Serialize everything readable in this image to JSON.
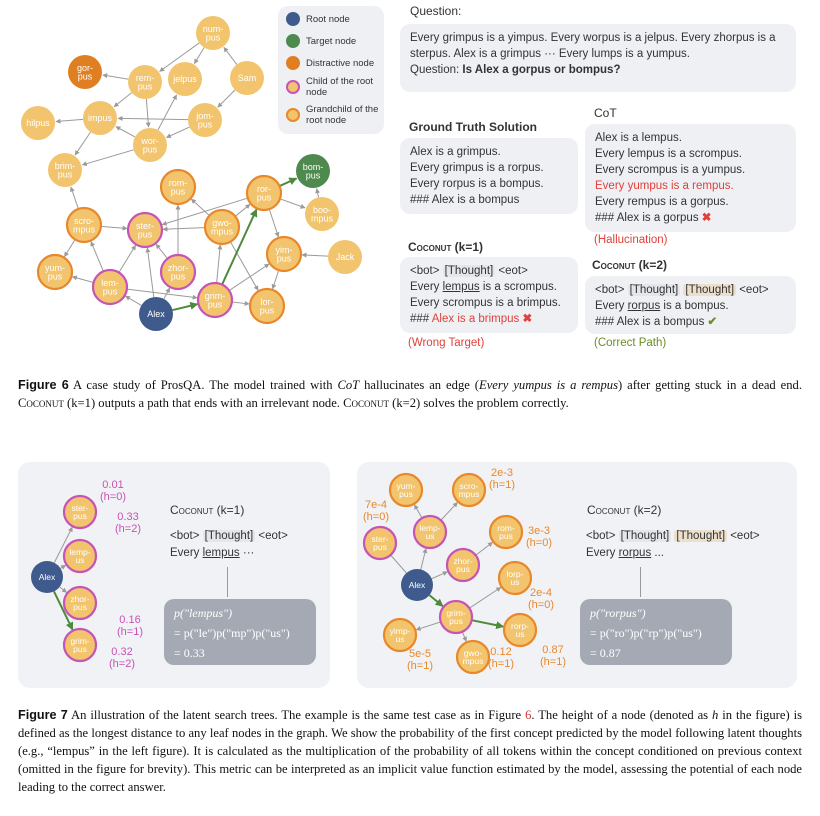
{
  "colors": {
    "fill": "#f2c46d",
    "orange": "#e8882a",
    "purple": "#c653b5",
    "root": "#3f5a8c",
    "target": "#4e8a4e",
    "distract": "#e07f22",
    "edge": "#9a9a9a",
    "green": "#4e8a3e"
  },
  "legend": [
    "Root node",
    "Target node",
    "Distractive node",
    "Child of the root node",
    "Grandchild of the root node"
  ],
  "fig6_graph": {
    "nodes": {
      "numpus": [
        "num-",
        "pus"
      ],
      "gorpus": [
        "gor-",
        "pus"
      ],
      "rempus": [
        "rem-",
        "pus"
      ],
      "jelpus": [
        "jelpus"
      ],
      "Sam": [
        "Sam"
      ],
      "hilpus": [
        "hilpus"
      ],
      "impus": [
        "impus"
      ],
      "jompus": [
        "jom-",
        "pus"
      ],
      "worpus": [
        "wor-",
        "pus"
      ],
      "brimpus": [
        "brim-",
        "pus"
      ],
      "rompus": [
        "rom-",
        "pus"
      ],
      "rorpus": [
        "ror-",
        "pus"
      ],
      "bompus": [
        "bom-",
        "pus"
      ],
      "boompus": [
        "boo-",
        "mpus"
      ],
      "scrompus": [
        "scro-",
        "mpus"
      ],
      "sterpus": [
        "ster-",
        "pus"
      ],
      "gwompus": [
        "gwo-",
        "mpus"
      ],
      "yimpus": [
        "yim-",
        "pus"
      ],
      "Jack": [
        "Jack"
      ],
      "yumpus": [
        "yum-",
        "pus"
      ],
      "lempus": [
        "lem-",
        "pus"
      ],
      "zhorpus": [
        "zhor-",
        "pus"
      ],
      "grimpus": [
        "grim-",
        "pus"
      ],
      "lorpus": [
        "lor-",
        "pus"
      ],
      "Alex": [
        "Alex"
      ]
    },
    "edges": [
      [
        "numpus",
        "rempus"
      ],
      [
        "numpus",
        "jelpus"
      ],
      [
        "Sam",
        "numpus"
      ],
      [
        "rempus",
        "gorpus"
      ],
      [
        "rempus",
        "impus"
      ],
      [
        "rempus",
        "worpus"
      ],
      [
        "jompus",
        "impus"
      ],
      [
        "Sam",
        "jompus"
      ],
      [
        "jompus",
        "worpus"
      ],
      [
        "worpus",
        "jelpus"
      ],
      [
        "worpus",
        "impus"
      ],
      [
        "impus",
        "hilpus"
      ],
      [
        "impus",
        "brimpus"
      ],
      [
        "worpus",
        "brimpus"
      ],
      [
        "scrompus",
        "brimpus"
      ],
      [
        "scrompus",
        "sterpus"
      ],
      [
        "scrompus",
        "yumpus"
      ],
      [
        "lempus",
        "scrompus"
      ],
      [
        "lempus",
        "sterpus"
      ],
      [
        "lempus",
        "yumpus"
      ],
      [
        "lempus",
        "grimpus"
      ],
      [
        "Alex",
        "lempus"
      ],
      [
        "Alex",
        "sterpus"
      ],
      [
        "Alex",
        "zhorpus"
      ],
      [
        "zhorpus",
        "sterpus"
      ],
      [
        "zhorpus",
        "rompus"
      ],
      [
        "gwompus",
        "sterpus"
      ],
      [
        "gwompus",
        "rompus"
      ],
      [
        "gwompus",
        "rorpus"
      ],
      [
        "rorpus",
        "sterpus"
      ],
      [
        "gwompus",
        "lorpus"
      ],
      [
        "grimpus",
        "gwompus"
      ],
      [
        "grimpus",
        "yimpus"
      ],
      [
        "grimpus",
        "lorpus"
      ],
      [
        "rorpus",
        "boompus"
      ],
      [
        "rorpus",
        "yimpus"
      ],
      [
        "boompus",
        "bompus"
      ],
      [
        "Jack",
        "yimpus"
      ],
      [
        "yimpus",
        "lorpus"
      ],
      [
        "Alex",
        "grimpus",
        "g"
      ],
      [
        "grimpus",
        "rorpus",
        "g"
      ],
      [
        "rorpus",
        "bompus",
        "g"
      ]
    ]
  },
  "question": {
    "label": "Question:",
    "text": "Every grimpus is a yimpus. Every worpus is a jelpus. Every zhorpus is a sterpus. Alex is a grimpus ··· Every lumps is a yumpus.",
    "q_prefix": "Question: ",
    "q": "Is Alex a gorpus or bompus?"
  },
  "ground_truth": {
    "label": "Ground Truth Solution",
    "lines": [
      "Alex is a grimpus.",
      "Every grimpus is a rorpus.",
      "Every rorpus is a bompus.",
      "### Alex is a bompus"
    ]
  },
  "cot": {
    "label": "CoT",
    "lines": [
      "Alex is a lempus.",
      "Every lempus is a scrompus.",
      "Every scrompus is a yumpus.",
      "Every yumpus is a rempus.",
      "Every rempus is a gorpus.",
      "### Alex is a gorpus"
    ],
    "note": "(Hallucination)"
  },
  "coconut1": {
    "name": "Coconut",
    "k": " (k=1)",
    "bot": "<bot>",
    "thought": "[Thought]",
    "eot": "<eot>",
    "l2a": "Every ",
    "l2u": "lempus",
    "l2b": " is a scrompus.",
    "l3": "Every scrompus is a brimpus.",
    "l4a": "### ",
    "l4b": "Alex is a brimpus",
    "note": "(Wrong Target)"
  },
  "coconut2": {
    "name": "Coconut",
    "k": " (k=2)",
    "bot": "<bot>",
    "thought": "[Thought]",
    "eot": "<eot>",
    "l2a": "Every ",
    "l2u": "rorpus",
    "l2b": " is a bompus.",
    "l3": "### Alex is a bompus",
    "note": "(Correct Path)"
  },
  "fig6_caption": {
    "label": "Figure 6",
    "text": " A case study of ProsQA. The model trained with ",
    "cot": "CoT",
    "t2": " hallucinates an edge (",
    "edge": "Every yumpus is a rempus",
    "t3": ") after getting stuck in a dead end. ",
    "c1": "Coconut",
    "t4": " (k=1) outputs a path that ends with an irrelevant node. ",
    "c2": "Coconut",
    "t5": " (k=2) solves the problem correctly."
  },
  "fig7_left": {
    "nodes": {
      "Alex": [
        "Alex"
      ],
      "sterpus": [
        "ster-",
        "pus"
      ],
      "lempus": [
        "lemp-",
        "us"
      ],
      "zhorpus": [
        "zhor-",
        "pus"
      ],
      "grimpus": [
        "grim-",
        "pus"
      ]
    },
    "edges": [
      [
        "Alex",
        "sterpus"
      ],
      [
        "Alex",
        "lempus"
      ],
      [
        "Alex",
        "zhorpus"
      ],
      [
        "Alex",
        "grimpus",
        "g"
      ]
    ],
    "probs": {
      "sterpus": [
        "0.01",
        "(h=0)"
      ],
      "lempus": [
        "0.33",
        "(h=2)"
      ],
      "zhorpus": [
        "0.16",
        "(h=1)"
      ],
      "grimpus": [
        "0.32",
        "(h=2)"
      ]
    },
    "title_name": "Coconut",
    "title_k": " (k=1)",
    "bot": "<bot>",
    "thought": "[Thought]",
    "eot": "<eot>",
    "l2a": "Every ",
    "l2u": "lempus",
    "l2b": " ···",
    "formula": [
      "p(\"lempus\")",
      "= p(\"le\")p(\"mp\")p(\"us\")",
      "= 0.33"
    ]
  },
  "fig7_right": {
    "nodes": {
      "yumpus": [
        "yum-",
        "pus"
      ],
      "scrompus": [
        "scro-",
        "mpus"
      ],
      "lempus": [
        "lemp-",
        "us"
      ],
      "sterpus": [
        "ster-",
        "pus"
      ],
      "rompus": [
        "rom-",
        "pus"
      ],
      "zhorpus": [
        "zhor-",
        "pus"
      ],
      "Alex": [
        "Alex"
      ],
      "lorpus": [
        "lorp-",
        "us"
      ],
      "grimpus": [
        "grim-",
        "pus"
      ],
      "rorpus": [
        "rorp-",
        "us"
      ],
      "yimpus": [
        "yimp-",
        "us"
      ],
      "gwompus": [
        "gwo-",
        "mpus"
      ]
    },
    "edges": [
      [
        "Alex",
        "lempus"
      ],
      [
        "lempus",
        "yumpus"
      ],
      [
        "lempus",
        "scrompus"
      ],
      [
        "Alex",
        "sterpus",
        "n"
      ],
      [
        "Alex",
        "zhorpus"
      ],
      [
        "zhorpus",
        "rompus"
      ],
      [
        "Alex",
        "grimpus",
        "g"
      ],
      [
        "grimpus",
        "lorpus"
      ],
      [
        "grimpus",
        "rorpus",
        "g"
      ],
      [
        "grimpus",
        "yimpus"
      ],
      [
        "grimpus",
        "gwompus"
      ]
    ],
    "probs": {
      "scrompus": [
        "2e-3",
        "(h=1)"
      ],
      "yumpus": [
        "7e-4",
        "(h=0)"
      ],
      "rompus": [
        "3e-3",
        "(h=0)"
      ],
      "lorpus": [
        "2e-4",
        "(h=0)"
      ],
      "yimpus": [
        "5e-5",
        "(h=1)"
      ],
      "gwompus": [
        "0.12",
        "(h=1)"
      ],
      "rorpus": [
        "0.87",
        "(h=1)"
      ]
    },
    "title_name": "Coconut",
    "title_k": " (k=2)",
    "bot": "<bot>",
    "thought": "[Thought]",
    "eot": "<eot>",
    "l2a": "Every ",
    "l2u": "rorpus",
    "l2b": " ...",
    "formula": [
      "p(\"rorpus\")",
      "= p(\"ro\")p(\"rp\")p(\"us\")",
      "= 0.87"
    ]
  },
  "fig7_caption": {
    "label": "Figure 7",
    "text": " An illustration of the latent search trees. The example is the same test case as in Figure ",
    "ref": "6",
    "t2": ". The height of a node (denoted as ",
    "h": "h",
    "t3": " in the figure) is defined as the longest distance to any leaf nodes in the graph. We show the probability of the first concept predicted by the model following latent thoughts (e.g., “lempus” in the left figure). It is calculated as the multiplication of the probability of all tokens within the concept conditioned on previous context (omitted in the figure for brevity). This metric can be interpreted as an implicit value function estimated by the model, assessing the potential of each node leading to the correct answer."
  }
}
